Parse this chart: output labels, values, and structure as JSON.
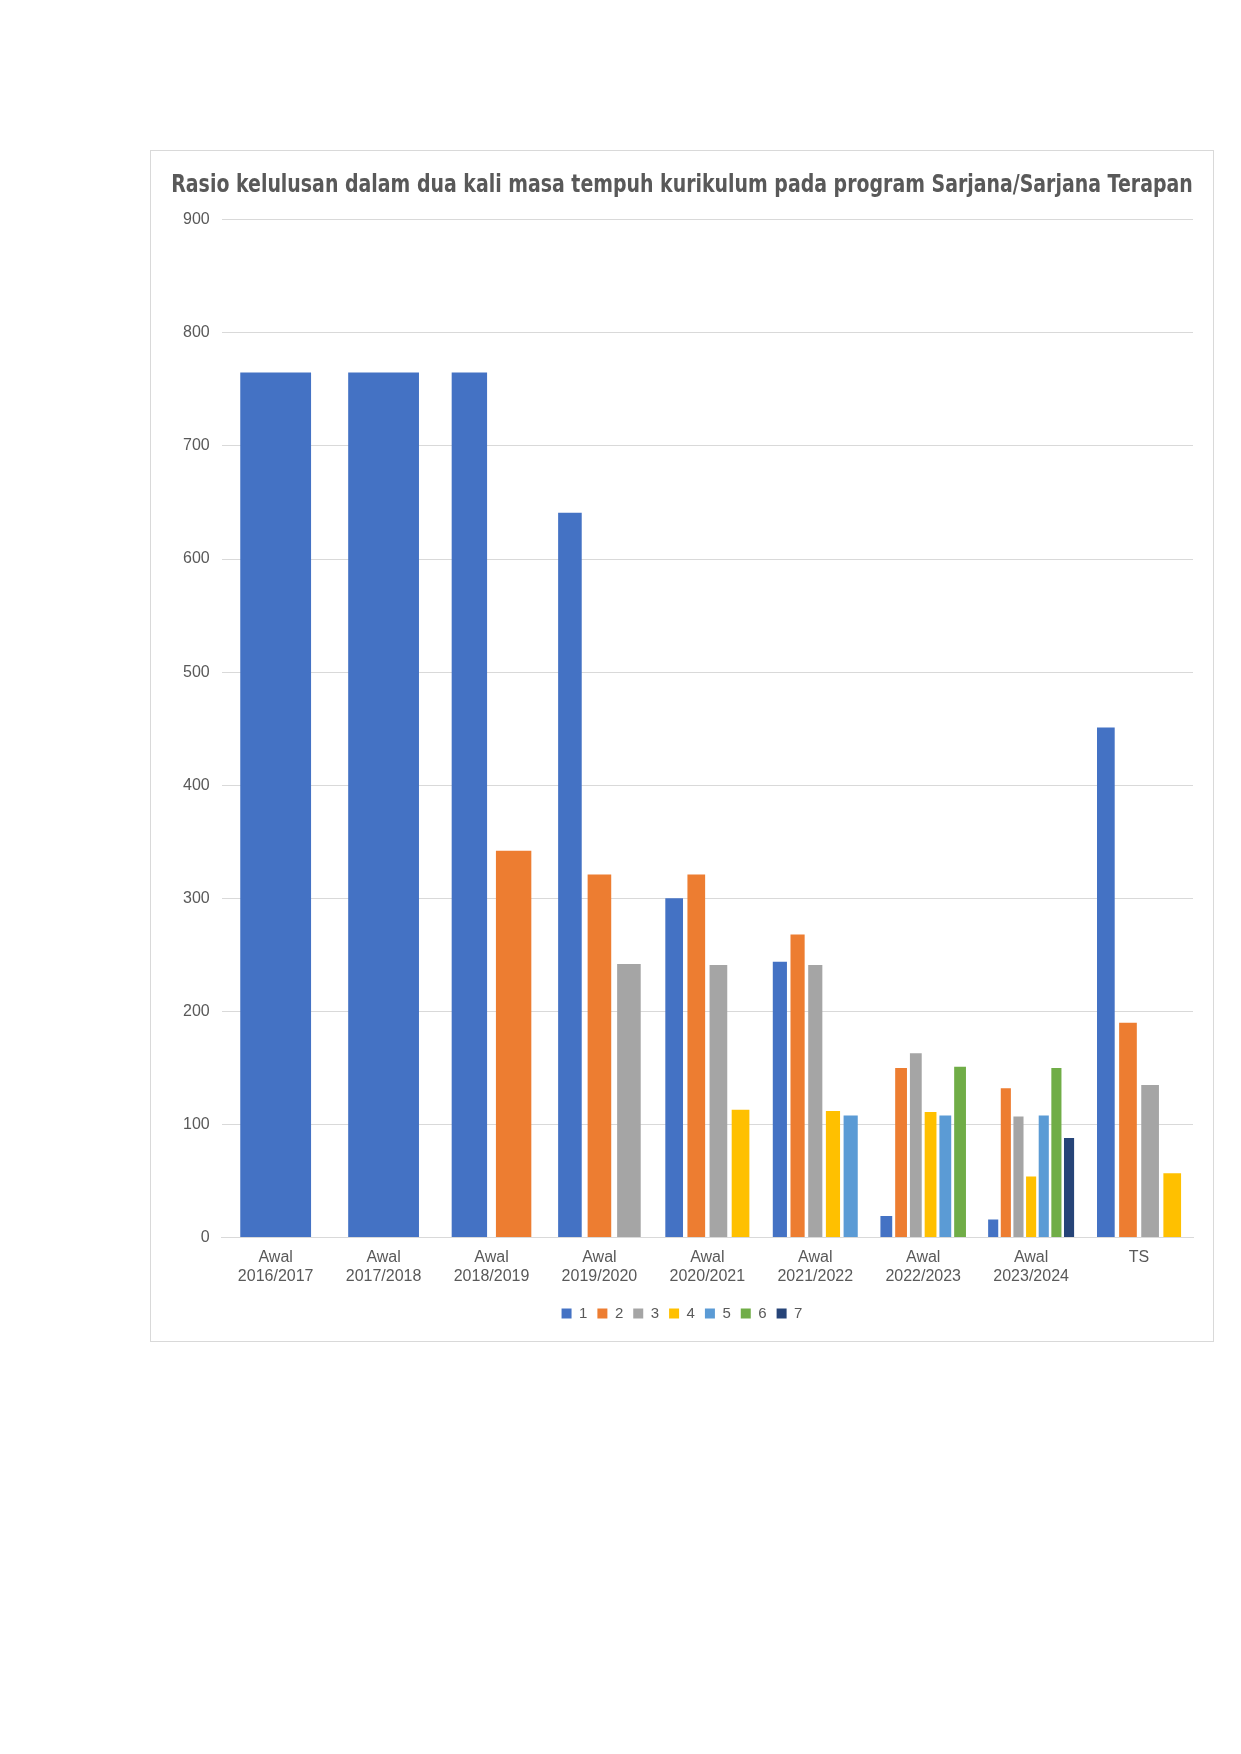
{
  "chart_data": {
    "type": "bar",
    "title": "Rasio kelulusan dalam dua kali masa tempuh kurikulum pada program Sarjana/Sarjana Terapan",
    "categories": [
      "Awal 2016/2017",
      "Awal 2017/2018",
      "Awal 2018/2019",
      "Awal 2019/2020",
      "Awal 2020/2021",
      "Awal 2021/2022",
      "Awal 2022/2023",
      "Awal 2023/2024",
      "TS"
    ],
    "series": [
      {
        "name": "1",
        "color": "#4472c4",
        "values": [
          765,
          765,
          765,
          641,
          300,
          244,
          19,
          16,
          451
        ]
      },
      {
        "name": "2",
        "color": "#ed7d31",
        "values": [
          null,
          null,
          342,
          321,
          321,
          268,
          150,
          132,
          190
        ]
      },
      {
        "name": "3",
        "color": "#a5a5a5",
        "values": [
          null,
          null,
          null,
          242,
          241,
          241,
          163,
          107,
          135
        ]
      },
      {
        "name": "4",
        "color": "#ffc000",
        "values": [
          null,
          null,
          null,
          null,
          113,
          112,
          111,
          54,
          57
        ]
      },
      {
        "name": "5",
        "color": "#5b9bd5",
        "values": [
          null,
          null,
          null,
          null,
          null,
          108,
          108,
          108,
          null
        ]
      },
      {
        "name": "6",
        "color": "#70ad47",
        "values": [
          null,
          null,
          null,
          null,
          null,
          null,
          151,
          150,
          null
        ]
      },
      {
        "name": "7",
        "color": "#264478",
        "values": [
          null,
          null,
          null,
          null,
          null,
          null,
          null,
          88,
          null
        ]
      }
    ],
    "ylim": [
      0,
      900
    ],
    "yticks": [
      0,
      100,
      200,
      300,
      400,
      500,
      600,
      700,
      800,
      900
    ],
    "grid": "y",
    "legend": "bottom"
  }
}
